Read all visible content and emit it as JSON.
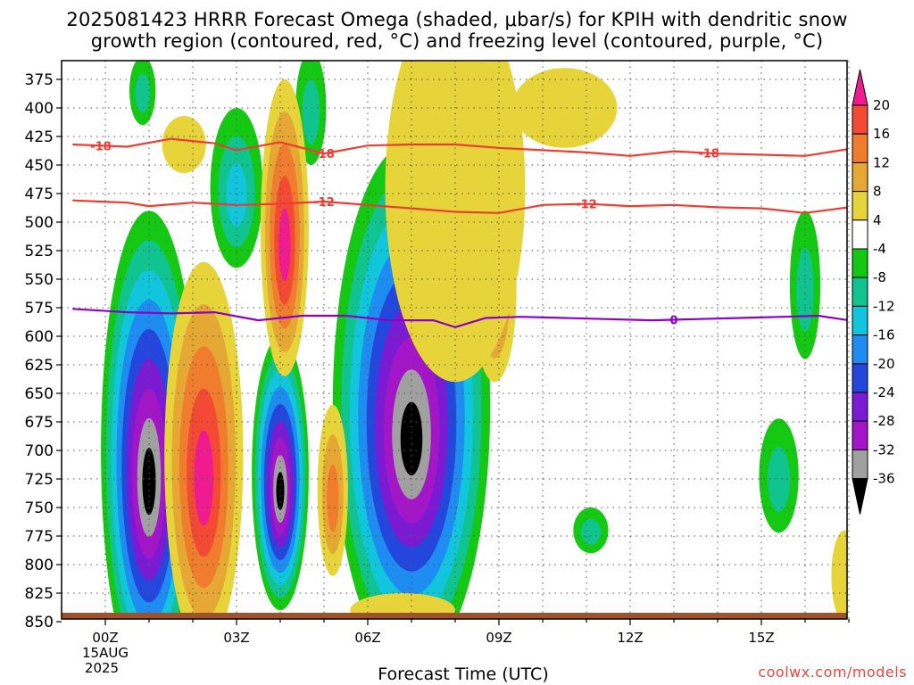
{
  "title": {
    "line1": "2025081423 HRRR Forecast Omega (shaded, μbar/s) for KPIH with dendritic snow",
    "line2": "growth region (contoured, red, °C) and freezing level (contoured, purple, °C)"
  },
  "footer": {
    "xlabel": "Forecast Time (UTC)",
    "credit": "coolwx.com/models",
    "date_line1": "15AUG",
    "date_line2": "2025"
  },
  "chart_data": {
    "type": "heatmap",
    "x_unit": "forecast hour",
    "x_range": [
      -0.75,
      17
    ],
    "y_unit": "hPa",
    "y_range": [
      380,
      860
    ],
    "x_ticks": [
      {
        "hour": 0,
        "label": "00Z"
      },
      {
        "hour": 3,
        "label": "03Z"
      },
      {
        "hour": 6,
        "label": "06Z"
      },
      {
        "hour": 9,
        "label": "09Z"
      },
      {
        "hour": 12,
        "label": "12Z"
      },
      {
        "hour": 15,
        "label": "15Z"
      }
    ],
    "y_ticks": [
      375,
      400,
      425,
      450,
      475,
      500,
      525,
      550,
      575,
      600,
      625,
      650,
      675,
      700,
      725,
      750,
      775,
      800,
      825,
      850
    ],
    "grid": true,
    "colorbar": {
      "labels": [
        20,
        16,
        12,
        8,
        4,
        -4,
        -8,
        -12,
        -16,
        -20,
        -24,
        -28,
        -32,
        -36
      ],
      "colors": [
        "#ee1c8e",
        "#f34a36",
        "#f07d2d",
        "#e6a835",
        "#e6d43a",
        "#ffffff",
        "#14c814",
        "#11c38f",
        "#11c5dc",
        "#1e8cf0",
        "#2346dc",
        "#7a1ad2",
        "#a316c8",
        "#a0a0a0",
        "#000000"
      ]
    },
    "omega_blobs": [
      {
        "x": 1.0,
        "p": 700,
        "rx": 1.1,
        "rp": 210,
        "min_level": -36,
        "min_color": "#000000",
        "ramp": "neg"
      },
      {
        "x": 4.0,
        "p": 720,
        "rx": 0.65,
        "rp": 120,
        "min_level": -36,
        "min_color": "#000000",
        "ramp": "neg"
      },
      {
        "x": 7.0,
        "p": 660,
        "rx": 1.8,
        "rp": 230,
        "min_level": -36,
        "min_color": "#000000",
        "ramp": "neg"
      },
      {
        "x": 3.0,
        "p": 470,
        "rx": 0.6,
        "rp": 70,
        "min_level": -12,
        "min_color": "#11c38f",
        "ramp": "neg"
      },
      {
        "x": 0.85,
        "p": 385,
        "rx": 0.3,
        "rp": 30,
        "min_level": -8,
        "min_color": "#14c814",
        "ramp": "neg"
      },
      {
        "x": 4.7,
        "p": 400,
        "rx": 0.35,
        "rp": 50,
        "min_level": -8,
        "min_color": "#14c814",
        "ramp": "neg"
      },
      {
        "x": 16.0,
        "p": 555,
        "rx": 0.35,
        "rp": 65,
        "min_level": -8,
        "min_color": "#14c814",
        "ramp": "neg"
      },
      {
        "x": 15.4,
        "p": 722,
        "rx": 0.45,
        "rp": 50,
        "min_level": -8,
        "min_color": "#14c814",
        "ramp": "neg"
      },
      {
        "x": 11.1,
        "p": 770,
        "rx": 0.4,
        "rp": 20,
        "min_level": -8,
        "min_color": "#14c814",
        "ramp": "neg"
      },
      {
        "x": 2.25,
        "p": 705,
        "rx": 0.9,
        "rp": 170,
        "max_level": 20,
        "max_color": "#ee1c8e",
        "ramp": "pos"
      },
      {
        "x": 4.1,
        "p": 505,
        "rx": 0.55,
        "rp": 130,
        "max_level": 20,
        "max_color": "#ee1c8e",
        "ramp": "pos"
      },
      {
        "x": 5.2,
        "p": 735,
        "rx": 0.35,
        "rp": 75,
        "max_level": 12,
        "max_color": "#f07d2d",
        "ramp": "pos"
      },
      {
        "x": 8.9,
        "p": 560,
        "rx": 0.5,
        "rp": 80,
        "max_level": 12,
        "max_color": "#f07d2d",
        "ramp": "pos"
      },
      {
        "x": 10.6,
        "p": 392,
        "rx": 0.3,
        "rp": 18,
        "max_level": 8,
        "max_color": "#e6a835",
        "ramp": "pos"
      },
      {
        "x": 1.8,
        "p": 432,
        "rx": 0.5,
        "rp": 25,
        "max_level": 4,
        "max_color": "#e6d43a",
        "ramp": "pos"
      },
      {
        "x": 8.0,
        "p": 470,
        "rx": 1.6,
        "rp": 170,
        "max_level": 4,
        "max_color": "#e6d43a",
        "ramp": "pos"
      },
      {
        "x": 10.5,
        "p": 400,
        "rx": 1.2,
        "rp": 35,
        "max_level": 4,
        "max_color": "#e6d43a",
        "ramp": "pos"
      },
      {
        "x": 6.8,
        "p": 840,
        "rx": 1.2,
        "rp": 15,
        "max_level": 4,
        "max_color": "#e6d43a",
        "ramp": "pos"
      },
      {
        "x": 16.9,
        "p": 810,
        "rx": 0.3,
        "rp": 40,
        "max_level": 4,
        "max_color": "#e6d43a",
        "ramp": "pos"
      }
    ],
    "contours": [
      {
        "name": "-18",
        "color": "#ee3c32",
        "label_hours": [
          -0.1,
          5.0,
          13.8
        ],
        "points": [
          [
            -0.75,
            432
          ],
          [
            0.5,
            434
          ],
          [
            1.5,
            427
          ],
          [
            2.5,
            431
          ],
          [
            3.0,
            437
          ],
          [
            4.0,
            430
          ],
          [
            5.0,
            440
          ],
          [
            6.0,
            433
          ],
          [
            7.0,
            432
          ],
          [
            8.0,
            432
          ],
          [
            9.0,
            435
          ],
          [
            10.0,
            437
          ],
          [
            11.0,
            439
          ],
          [
            12.0,
            442
          ],
          [
            13.0,
            438
          ],
          [
            14.0,
            440
          ],
          [
            15.0,
            441
          ],
          [
            16.0,
            442
          ],
          [
            17.0,
            436
          ]
        ]
      },
      {
        "name": "-12",
        "color": "#ee3c32",
        "label_hours": [
          5.0,
          11.0
        ],
        "points": [
          [
            -0.75,
            481
          ],
          [
            0.5,
            483
          ],
          [
            1.0,
            486
          ],
          [
            2.0,
            483
          ],
          [
            3.0,
            485
          ],
          [
            4.0,
            484
          ],
          [
            5.0,
            482
          ],
          [
            6.0,
            485
          ],
          [
            7.0,
            488
          ],
          [
            8.0,
            491
          ],
          [
            9.0,
            492
          ],
          [
            10.0,
            485
          ],
          [
            11.0,
            484
          ],
          [
            12.0,
            486
          ],
          [
            13.0,
            485
          ],
          [
            14.0,
            487
          ],
          [
            15.0,
            488
          ],
          [
            16.0,
            492
          ],
          [
            17.0,
            487
          ]
        ]
      },
      {
        "name": "0",
        "color": "#8c00c8",
        "label_hours": [
          13.0
        ],
        "points": [
          [
            -0.75,
            576
          ],
          [
            0.5,
            579
          ],
          [
            1.5,
            580
          ],
          [
            2.5,
            579
          ],
          [
            3.5,
            586
          ],
          [
            4.5,
            582
          ],
          [
            5.5,
            582
          ],
          [
            6.5,
            586
          ],
          [
            7.5,
            586
          ],
          [
            8.0,
            592
          ],
          [
            8.7,
            584
          ],
          [
            9.5,
            583
          ],
          [
            10.5,
            584
          ],
          [
            11.5,
            585
          ],
          [
            12.5,
            586
          ],
          [
            13.5,
            585
          ],
          [
            14.5,
            584
          ],
          [
            15.5,
            583
          ],
          [
            16.3,
            582
          ],
          [
            17.0,
            586
          ]
        ]
      }
    ],
    "terrain_pressure": 860
  }
}
